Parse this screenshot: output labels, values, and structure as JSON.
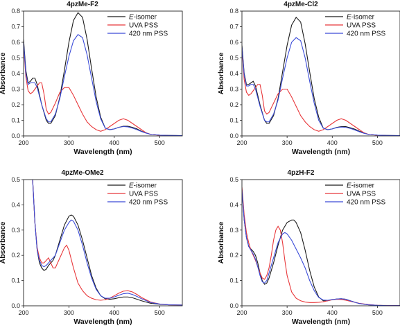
{
  "chart_data": [
    {
      "type": "line",
      "title": "4pzMe-F2",
      "xlabel": "Wavelength (nm)",
      "ylabel": "Absorbance",
      "xlim": [
        200,
        550
      ],
      "ylim": [
        0,
        0.8
      ],
      "xticks": [
        200,
        300,
        400,
        500
      ],
      "yticks": [
        0,
        0.1,
        0.2,
        0.3,
        0.4,
        0.5,
        0.6,
        0.7,
        0.8
      ],
      "ytick_labels": [
        "0.0",
        "0.1",
        "0.2",
        "0.3",
        "0.4",
        "0.5",
        "0.6",
        "0.7",
        "0.8"
      ],
      "legend_position": "top-right",
      "series": [
        {
          "name_prefix": "E",
          "name": "-isomer",
          "color": "#1a1a1a",
          "x": [
            200,
            205,
            210,
            215,
            220,
            225,
            230,
            240,
            250,
            255,
            260,
            270,
            280,
            290,
            300,
            310,
            320,
            330,
            340,
            350,
            360,
            370,
            380,
            390,
            400,
            410,
            420,
            430,
            440,
            450,
            460,
            470,
            480,
            500,
            520,
            550
          ],
          "y": [
            0.62,
            0.42,
            0.34,
            0.35,
            0.37,
            0.37,
            0.33,
            0.2,
            0.1,
            0.08,
            0.08,
            0.13,
            0.25,
            0.42,
            0.6,
            0.74,
            0.79,
            0.76,
            0.62,
            0.43,
            0.25,
            0.12,
            0.05,
            0.04,
            0.045,
            0.055,
            0.062,
            0.062,
            0.055,
            0.045,
            0.03,
            0.02,
            0.01,
            0.005,
            0.003,
            0.002
          ]
        },
        {
          "name": "UVA PSS",
          "color": "#e8383b",
          "x": [
            200,
            205,
            210,
            215,
            220,
            225,
            230,
            235,
            240,
            245,
            250,
            255,
            260,
            265,
            270,
            280,
            290,
            300,
            310,
            320,
            330,
            340,
            350,
            360,
            370,
            380,
            390,
            400,
            410,
            420,
            430,
            440,
            450,
            460,
            470,
            480,
            500,
            520,
            550
          ],
          "y": [
            0.58,
            0.38,
            0.29,
            0.27,
            0.28,
            0.3,
            0.32,
            0.34,
            0.34,
            0.27,
            0.17,
            0.14,
            0.15,
            0.18,
            0.21,
            0.28,
            0.31,
            0.31,
            0.26,
            0.2,
            0.14,
            0.09,
            0.06,
            0.04,
            0.03,
            0.04,
            0.06,
            0.08,
            0.1,
            0.11,
            0.1,
            0.08,
            0.06,
            0.04,
            0.02,
            0.01,
            0.004,
            0.002,
            0.001
          ]
        },
        {
          "name": "420 nm PSS",
          "color": "#3a4bd8",
          "x": [
            200,
            205,
            210,
            215,
            220,
            225,
            230,
            240,
            250,
            255,
            260,
            270,
            280,
            290,
            300,
            310,
            320,
            330,
            340,
            350,
            360,
            370,
            380,
            390,
            400,
            410,
            420,
            430,
            440,
            450,
            460,
            470,
            480,
            500,
            520,
            550
          ],
          "y": [
            0.6,
            0.4,
            0.33,
            0.34,
            0.34,
            0.34,
            0.31,
            0.2,
            0.11,
            0.09,
            0.09,
            0.14,
            0.24,
            0.38,
            0.51,
            0.61,
            0.65,
            0.63,
            0.52,
            0.37,
            0.22,
            0.11,
            0.05,
            0.04,
            0.045,
            0.055,
            0.06,
            0.058,
            0.05,
            0.04,
            0.028,
            0.018,
            0.01,
            0.005,
            0.003,
            0.002
          ]
        }
      ]
    },
    {
      "type": "line",
      "title": "4pzMe-Cl2",
      "xlabel": "Wavelength (nm)",
      "ylabel": "Absorbance",
      "xlim": [
        200,
        550
      ],
      "ylim": [
        0,
        0.8
      ],
      "xticks": [
        200,
        300,
        400,
        500
      ],
      "yticks": [
        0,
        0.1,
        0.2,
        0.3,
        0.4,
        0.5,
        0.6,
        0.7,
        0.8
      ],
      "ytick_labels": [
        "0.0",
        "0.1",
        "0.2",
        "0.3",
        "0.4",
        "0.5",
        "0.6",
        "0.7",
        "0.8"
      ],
      "legend_position": "top-right",
      "series": [
        {
          "name_prefix": "E",
          "name": "-isomer",
          "color": "#1a1a1a",
          "x": [
            200,
            205,
            210,
            215,
            220,
            225,
            230,
            240,
            250,
            255,
            260,
            270,
            280,
            290,
            300,
            310,
            320,
            330,
            340,
            350,
            360,
            370,
            380,
            390,
            400,
            410,
            420,
            430,
            440,
            450,
            460,
            470,
            480,
            500,
            520,
            550
          ],
          "y": [
            0.58,
            0.4,
            0.33,
            0.33,
            0.34,
            0.35,
            0.32,
            0.2,
            0.1,
            0.08,
            0.08,
            0.13,
            0.24,
            0.41,
            0.58,
            0.71,
            0.76,
            0.73,
            0.59,
            0.41,
            0.24,
            0.12,
            0.05,
            0.04,
            0.045,
            0.055,
            0.06,
            0.06,
            0.052,
            0.043,
            0.03,
            0.02,
            0.01,
            0.005,
            0.003,
            0.002
          ]
        },
        {
          "name": "UVA PSS",
          "color": "#e8383b",
          "x": [
            200,
            205,
            210,
            215,
            220,
            225,
            230,
            235,
            240,
            245,
            250,
            255,
            260,
            265,
            270,
            280,
            290,
            300,
            310,
            320,
            330,
            340,
            350,
            360,
            370,
            380,
            390,
            400,
            410,
            420,
            430,
            440,
            450,
            460,
            470,
            480,
            500,
            520,
            550
          ],
          "y": [
            0.56,
            0.36,
            0.28,
            0.26,
            0.27,
            0.29,
            0.31,
            0.33,
            0.33,
            0.26,
            0.16,
            0.14,
            0.15,
            0.18,
            0.21,
            0.27,
            0.3,
            0.3,
            0.25,
            0.19,
            0.13,
            0.09,
            0.06,
            0.04,
            0.03,
            0.04,
            0.06,
            0.08,
            0.1,
            0.11,
            0.1,
            0.08,
            0.06,
            0.04,
            0.02,
            0.01,
            0.004,
            0.002,
            0.001
          ]
        },
        {
          "name": "420 nm PSS",
          "color": "#3a4bd8",
          "x": [
            200,
            205,
            210,
            215,
            220,
            225,
            230,
            240,
            250,
            255,
            260,
            270,
            280,
            290,
            300,
            310,
            320,
            330,
            340,
            350,
            360,
            370,
            380,
            390,
            400,
            410,
            420,
            430,
            440,
            450,
            460,
            470,
            480,
            500,
            520,
            550
          ],
          "y": [
            0.57,
            0.39,
            0.32,
            0.32,
            0.33,
            0.33,
            0.3,
            0.19,
            0.1,
            0.09,
            0.09,
            0.14,
            0.23,
            0.37,
            0.5,
            0.6,
            0.63,
            0.61,
            0.5,
            0.35,
            0.21,
            0.1,
            0.05,
            0.04,
            0.045,
            0.053,
            0.057,
            0.055,
            0.048,
            0.038,
            0.027,
            0.017,
            0.01,
            0.005,
            0.003,
            0.002
          ]
        }
      ]
    },
    {
      "type": "line",
      "title": "4pzMe-OMe2",
      "xlabel": "Wavelength (nm)",
      "ylabel": "Absorbance",
      "xlim": [
        200,
        550
      ],
      "ylim": [
        0,
        0.5
      ],
      "xticks": [
        200,
        300,
        400,
        500
      ],
      "yticks": [
        0,
        0.1,
        0.2,
        0.3,
        0.4,
        0.5
      ],
      "ytick_labels": [
        "0.0",
        "0.1",
        "0.2",
        "0.3",
        "0.4",
        "0.5"
      ],
      "legend_position": "top-right",
      "series": [
        {
          "name_prefix": "E",
          "name": "-isomer",
          "color": "#1a1a1a",
          "x": [
            220,
            225,
            230,
            235,
            240,
            245,
            250,
            255,
            260,
            265,
            270,
            280,
            290,
            300,
            305,
            310,
            320,
            330,
            340,
            350,
            360,
            370,
            380,
            390,
            400,
            410,
            420,
            430,
            440,
            450,
            460,
            480,
            500,
            520,
            550
          ],
          "y": [
            0.5,
            0.33,
            0.22,
            0.17,
            0.15,
            0.14,
            0.145,
            0.16,
            0.17,
            0.18,
            0.2,
            0.26,
            0.32,
            0.355,
            0.36,
            0.355,
            0.32,
            0.26,
            0.19,
            0.12,
            0.07,
            0.04,
            0.028,
            0.026,
            0.028,
            0.032,
            0.035,
            0.035,
            0.032,
            0.026,
            0.02,
            0.01,
            0.006,
            0.004,
            0.003
          ]
        },
        {
          "name": "UVA PSS",
          "color": "#e8383b",
          "x": [
            220,
            225,
            230,
            235,
            240,
            245,
            250,
            255,
            260,
            265,
            270,
            280,
            290,
            295,
            300,
            310,
            320,
            330,
            340,
            350,
            360,
            370,
            380,
            390,
            400,
            410,
            420,
            430,
            440,
            450,
            460,
            480,
            500,
            520,
            550
          ],
          "y": [
            0.5,
            0.33,
            0.23,
            0.19,
            0.17,
            0.17,
            0.18,
            0.19,
            0.17,
            0.15,
            0.15,
            0.19,
            0.23,
            0.24,
            0.22,
            0.15,
            0.09,
            0.06,
            0.04,
            0.03,
            0.024,
            0.022,
            0.024,
            0.03,
            0.04,
            0.05,
            0.058,
            0.06,
            0.055,
            0.045,
            0.033,
            0.015,
            0.007,
            0.004,
            0.003
          ]
        },
        {
          "name": "420 nm PSS",
          "color": "#3a4bd8",
          "x": [
            220,
            225,
            230,
            235,
            240,
            245,
            250,
            255,
            260,
            265,
            270,
            280,
            290,
            300,
            305,
            310,
            320,
            330,
            340,
            350,
            360,
            370,
            380,
            390,
            400,
            410,
            420,
            430,
            440,
            450,
            460,
            480,
            500,
            520,
            550
          ],
          "y": [
            0.5,
            0.33,
            0.22,
            0.18,
            0.16,
            0.155,
            0.16,
            0.17,
            0.18,
            0.19,
            0.2,
            0.25,
            0.3,
            0.33,
            0.34,
            0.335,
            0.3,
            0.24,
            0.17,
            0.11,
            0.065,
            0.04,
            0.03,
            0.03,
            0.035,
            0.042,
            0.048,
            0.05,
            0.045,
            0.037,
            0.028,
            0.013,
            0.007,
            0.004,
            0.003
          ]
        }
      ]
    },
    {
      "type": "line",
      "title": "4pzH-F2",
      "xlabel": "Wavelength (nm)",
      "ylabel": "Absorbance",
      "xlim": [
        200,
        550
      ],
      "ylim": [
        0,
        0.5
      ],
      "xticks": [
        200,
        300,
        400,
        500
      ],
      "yticks": [
        0,
        0.1,
        0.2,
        0.3,
        0.4,
        0.5
      ],
      "ytick_labels": [
        "0.0",
        "0.1",
        "0.2",
        "0.3",
        "0.4",
        "0.5"
      ],
      "legend_position": "top-right",
      "series": [
        {
          "name_prefix": "E",
          "name": "-isomer",
          "color": "#1a1a1a",
          "x": [
            200,
            205,
            210,
            215,
            220,
            225,
            230,
            235,
            240,
            245,
            250,
            255,
            260,
            270,
            280,
            290,
            300,
            310,
            315,
            320,
            330,
            340,
            350,
            360,
            370,
            380,
            390,
            400,
            410,
            420,
            430,
            440,
            450,
            460,
            480,
            500,
            520,
            550
          ],
          "y": [
            0.46,
            0.34,
            0.27,
            0.235,
            0.225,
            0.215,
            0.2,
            0.17,
            0.13,
            0.1,
            0.085,
            0.09,
            0.11,
            0.17,
            0.24,
            0.3,
            0.33,
            0.34,
            0.34,
            0.33,
            0.29,
            0.22,
            0.14,
            0.075,
            0.035,
            0.02,
            0.02,
            0.024,
            0.027,
            0.028,
            0.026,
            0.02,
            0.014,
            0.009,
            0.004,
            0.002,
            0.001,
            0.001
          ]
        },
        {
          "name": "UVA PSS",
          "color": "#e8383b",
          "x": [
            200,
            205,
            210,
            215,
            220,
            225,
            230,
            235,
            240,
            245,
            250,
            255,
            260,
            265,
            270,
            275,
            280,
            285,
            290,
            295,
            300,
            310,
            320,
            330,
            340,
            350,
            360,
            370,
            380,
            390,
            400,
            410,
            420,
            430,
            440,
            460,
            480,
            500,
            550
          ],
          "y": [
            0.47,
            0.36,
            0.29,
            0.25,
            0.22,
            0.2,
            0.18,
            0.155,
            0.13,
            0.11,
            0.105,
            0.12,
            0.15,
            0.2,
            0.26,
            0.3,
            0.315,
            0.3,
            0.25,
            0.18,
            0.12,
            0.055,
            0.03,
            0.02,
            0.015,
            0.013,
            0.013,
            0.014,
            0.016,
            0.02,
            0.024,
            0.026,
            0.025,
            0.022,
            0.018,
            0.01,
            0.005,
            0.002,
            0.001
          ]
        },
        {
          "name": "420 nm PSS",
          "color": "#3a4bd8",
          "x": [
            200,
            205,
            210,
            215,
            220,
            225,
            230,
            235,
            240,
            245,
            250,
            255,
            260,
            270,
            280,
            290,
            295,
            300,
            310,
            320,
            330,
            340,
            350,
            360,
            370,
            380,
            390,
            400,
            410,
            420,
            430,
            440,
            450,
            460,
            480,
            500,
            520,
            550
          ],
          "y": [
            0.46,
            0.34,
            0.27,
            0.235,
            0.22,
            0.205,
            0.185,
            0.155,
            0.12,
            0.095,
            0.09,
            0.1,
            0.13,
            0.19,
            0.25,
            0.285,
            0.29,
            0.285,
            0.26,
            0.225,
            0.19,
            0.15,
            0.1,
            0.06,
            0.033,
            0.023,
            0.022,
            0.025,
            0.027,
            0.028,
            0.026,
            0.02,
            0.014,
            0.009,
            0.004,
            0.002,
            0.001,
            0.001
          ]
        }
      ]
    }
  ]
}
